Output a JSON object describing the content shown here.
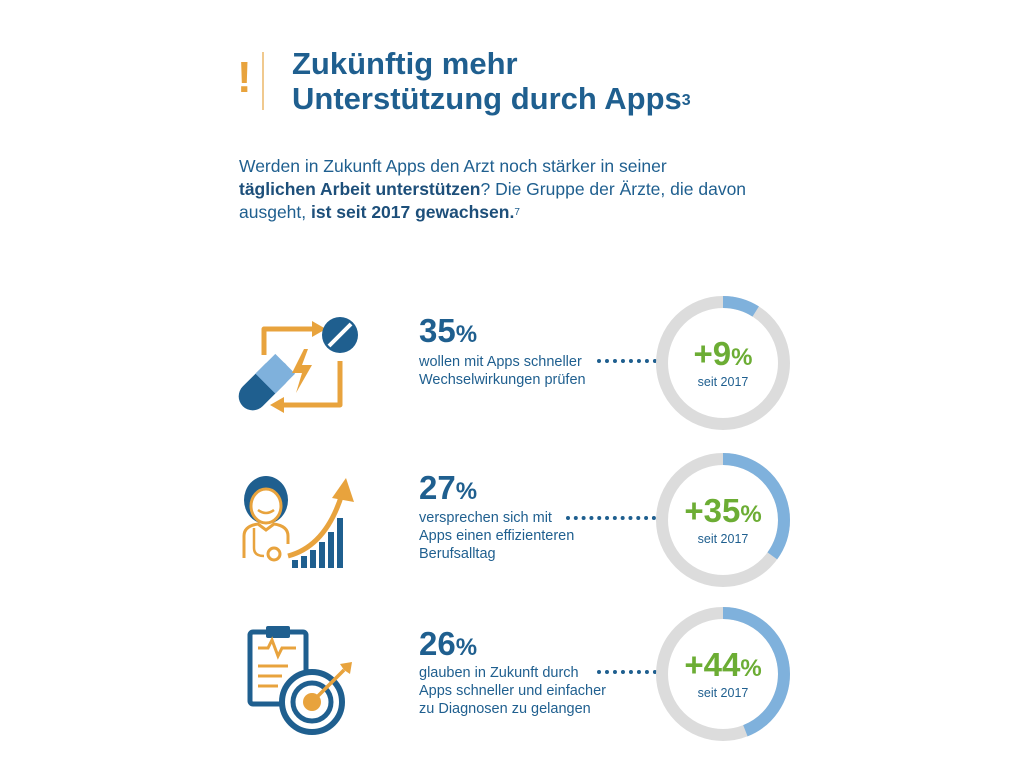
{
  "header": {
    "title_line1": "Zukünftig mehr",
    "title_line2": "Unterstützung durch Apps",
    "title_footnote": "3"
  },
  "intro": {
    "part1": "Werden in Zukunft Apps den Arzt noch stärker in seiner",
    "bold1": "täglichen Arbeit unterstützen",
    "part2": "? Die Gruppe der Ärzte, die davon ausgeht,",
    "bold2": "ist seit 2017 gewachsen.",
    "footnote": "7"
  },
  "colors": {
    "primary_blue": "#1f5f8f",
    "light_blue": "#7fb1dc",
    "orange": "#e8a33d",
    "green": "#6cad34",
    "ring_gray": "#dcdcdc"
  },
  "chart_data": {
    "type": "donut",
    "items": [
      {
        "icon": "pill-interaction-icon",
        "value": "35",
        "unit": "%",
        "description": [
          "wollen mit Apps schneller",
          "Wechselwirkungen prüfen"
        ],
        "change": "+9",
        "change_unit": "%",
        "change_label": "seit 2017",
        "ring_fraction": 0.09
      },
      {
        "icon": "doctor-growth-icon",
        "value": "27",
        "unit": "%",
        "description": [
          "versprechen sich mit",
          "Apps einen effizienteren",
          "Berufsalltag"
        ],
        "change": "+35",
        "change_unit": "%",
        "change_label": "seit 2017",
        "ring_fraction": 0.35
      },
      {
        "icon": "diagnosis-target-icon",
        "value": "26",
        "unit": "%",
        "description": [
          "glauben in Zukunft durch",
          "Apps schneller und einfacher",
          "zu Diagnosen zu gelangen"
        ],
        "change": "+44",
        "change_unit": "%",
        "change_label": "seit 2017",
        "ring_fraction": 0.44
      }
    ]
  }
}
